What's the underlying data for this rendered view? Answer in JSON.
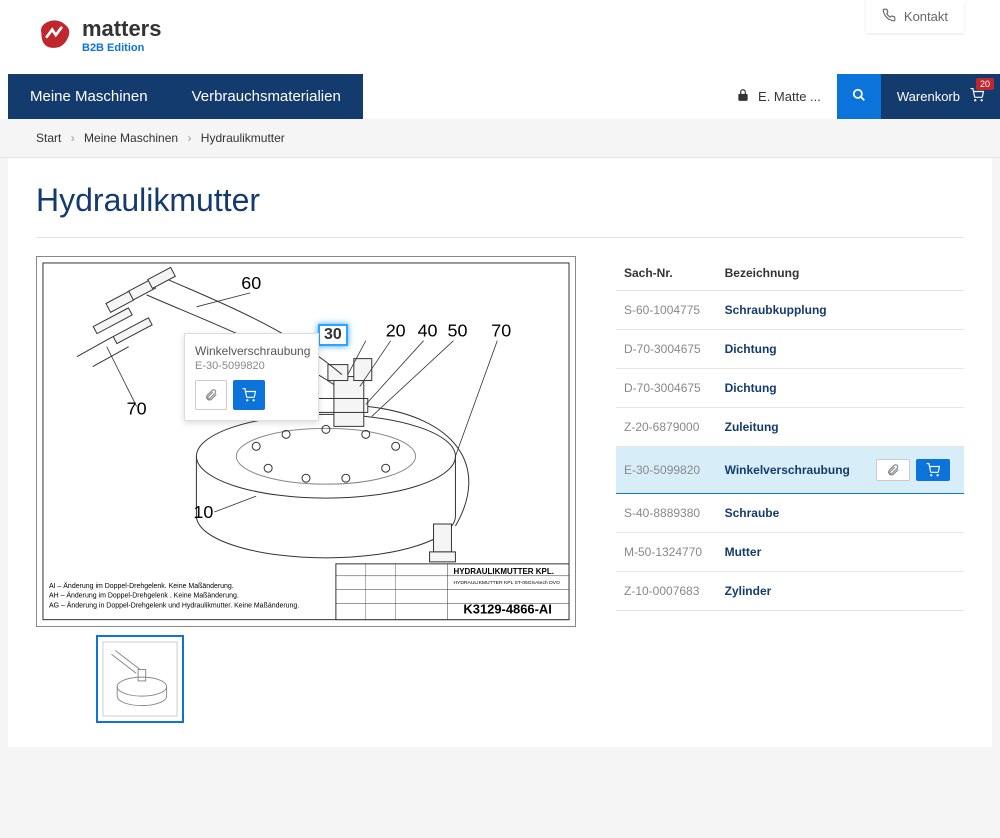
{
  "kontakt": {
    "label": "Kontakt"
  },
  "logo": {
    "name": "matters",
    "sub": "B2B Edition"
  },
  "nav": {
    "items": [
      {
        "label": "Meine Maschinen"
      },
      {
        "label": "Verbrauchsmaterialien"
      }
    ],
    "user": "E. Matte ...",
    "cart_label": "Warenkorb",
    "cart_count": "20"
  },
  "breadcrumb": {
    "items": [
      "Start",
      "Meine Maschinen",
      "Hydraulikmutter"
    ]
  },
  "page_title": "Hydraulikmutter",
  "diagram": {
    "callouts": {
      "c10": "10",
      "c20": "20",
      "c30": "30",
      "c40": "40",
      "c50": "50",
      "c60": "60",
      "c70l": "70",
      "c70r": "70"
    },
    "title_block": {
      "title": "HYDRAULIKMUTTER KPL.",
      "subtitle": "HYDRAULIKMUTTER KPL ST-05GSAtech DVO",
      "drawing_no": "K3129-4866-AI"
    },
    "notes": [
      "AI – Änderung im Doppel-Drehgelenk. Keine Maßänderung.",
      "AH – Änderung im Doppel-Drehgelenk . Keine Maßänderung.",
      "AG – Änderung in Doppel-Drehgelenk und Hydraulikmutter. Keine Maßänderung."
    ]
  },
  "tooltip": {
    "title": "Winkelverschraubung",
    "sku": "E-30-5099820"
  },
  "table": {
    "headers": {
      "sku": "Sach-Nr.",
      "name": "Bezeichnung"
    },
    "rows": [
      {
        "sku": "S-60-1004775",
        "name": "Schraubkupplung",
        "selected": false
      },
      {
        "sku": "D-70-3004675",
        "name": "Dichtung",
        "selected": false
      },
      {
        "sku": "D-70-3004675",
        "name": "Dichtung",
        "selected": false
      },
      {
        "sku": "Z-20-6879000",
        "name": "Zuleitung",
        "selected": false
      },
      {
        "sku": "E-30-5099820",
        "name": "Winkelverschraubung",
        "selected": true
      },
      {
        "sku": "S-40-8889380",
        "name": "Schraube",
        "selected": false
      },
      {
        "sku": "M-50-1324770",
        "name": "Mutter",
        "selected": false
      },
      {
        "sku": "Z-10-0007683",
        "name": "Zylinder",
        "selected": false
      }
    ]
  },
  "colors": {
    "primary": "#143b6d",
    "accent": "#0b73d9",
    "highlight": "#2ea3ff",
    "rowsel": "#d7eef8",
    "badge": "#c0272d"
  }
}
